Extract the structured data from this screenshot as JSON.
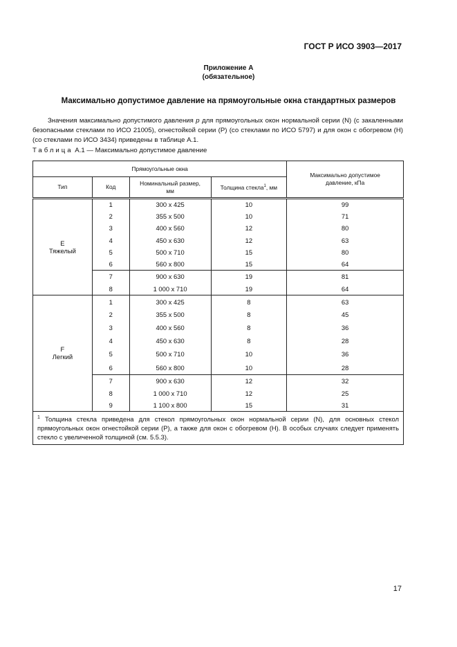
{
  "header": {
    "standard": "ГОСТ Р ИСО 3903—2017"
  },
  "appendix": {
    "title": "Приложение А",
    "status": "(обязательное)"
  },
  "section_title": "Максимально допустимое давление на прямоугольные окна стандартных размеров",
  "paragraph": {
    "before": "Значения максимально допустимого давления ",
    "symbol": "p",
    "after": " для прямоугольных окон нормальной серии (N) (с закаленными безопасными стеклами по ИСО 21005), огнестойкой серии (Р) (со стеклами по ИСО 5797) и для окон с обогревом (Н) (со стеклами по ИСО 3434) приведены в таблице А.1."
  },
  "table": {
    "caption_word": "Таблица",
    "caption_rest": " А.1 — Максимально допустимое давление",
    "headers": {
      "group": "Прямоугольные окна",
      "type": "Тип",
      "code": "Код",
      "size": "Номинальный размер, мм",
      "thickness": "Толщина стекла",
      "thickness_sup": "1",
      "thickness_unit": ", мм",
      "pressure": "Максимально допустимое давление, кПа"
    },
    "groups": [
      {
        "type_letter": "E",
        "type_name": "Тяжелый",
        "rows": [
          [
            "1",
            "300 x 425",
            "10",
            "99"
          ],
          [
            "2",
            "355 x 500",
            "10",
            "71"
          ],
          [
            "3",
            "400 x 560",
            "12",
            "80"
          ],
          [
            "4",
            "450 x 630",
            "12",
            "63"
          ],
          [
            "5",
            "500 x 710",
            "15",
            "80"
          ],
          [
            "6",
            "560 x 800",
            "15",
            "64"
          ],
          [
            "7",
            "900 x 630",
            "19",
            "81"
          ],
          [
            "8",
            "1 000 x 710",
            "19",
            "64"
          ]
        ]
      },
      {
        "type_letter": "F",
        "type_name": "Легкий",
        "rows": [
          [
            "1",
            "300 x 425",
            "8",
            "63"
          ],
          [
            "2",
            "355 x 500",
            "8",
            "45"
          ],
          [
            "3",
            "400 x 560",
            "8",
            "36"
          ],
          [
            "4",
            "450 x 630",
            "8",
            "28"
          ],
          [
            "5",
            "500 x 710",
            "10",
            "36"
          ],
          [
            "6",
            "560 x 800",
            "10",
            "28"
          ],
          [
            "7",
            "900 x 630",
            "12",
            "32"
          ],
          [
            "8",
            "1 000 x 710",
            "12",
            "25"
          ],
          [
            "9",
            "1 100 x 800",
            "15",
            "31"
          ]
        ]
      }
    ],
    "footnote_mark": "1",
    "footnote": " Толщина стекла приведена для стекол прямоугольных окон нормальной серии (N), для основных стекол прямоугольных окон огнестойкой серии (Р), а также для окон с обогревом (Н). В особых случаях следует применять стекло с увеличенной толщиной (см. 5.5.3)."
  },
  "page_number": "17"
}
